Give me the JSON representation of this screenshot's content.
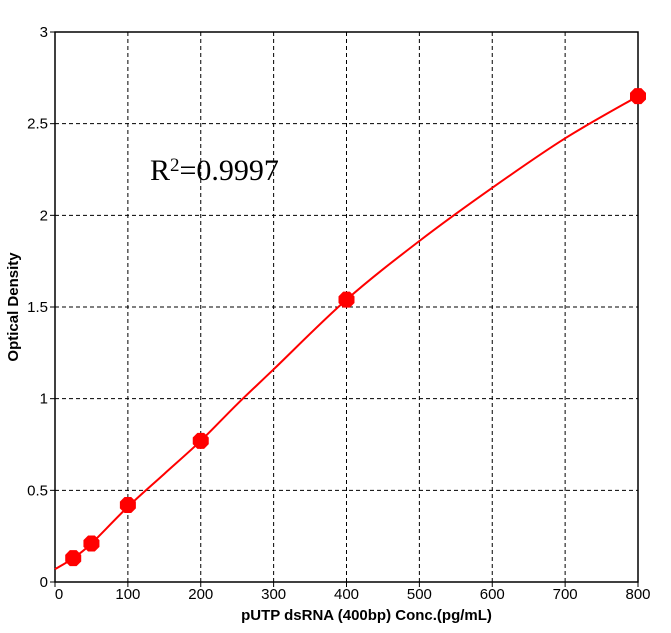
{
  "chart_data": {
    "type": "scatter",
    "title": "",
    "xlabel": "pUTP dsRNA (400bp) Conc.(pg/mL)",
    "ylabel": "Optical Density",
    "xlim": [
      0,
      800
    ],
    "ylim": [
      0,
      3
    ],
    "x_ticks": [
      0,
      100,
      200,
      300,
      400,
      500,
      600,
      700,
      800
    ],
    "y_ticks": [
      0,
      0.5,
      1,
      1.5,
      2,
      2.5,
      3
    ],
    "x_tick_labels": [
      "0",
      "100",
      "200",
      "300",
      "400",
      "500",
      "600",
      "700",
      "800"
    ],
    "y_tick_labels": [
      "0",
      "0.5",
      "1",
      "1.5",
      "2",
      "2.5",
      "3"
    ],
    "grid": true,
    "colors": {
      "series": "#ff0000",
      "grid": "#000000",
      "axis": "#000000"
    },
    "series": [
      {
        "x": [
          25,
          50,
          100,
          200,
          400,
          800
        ],
        "y": [
          0.13,
          0.21,
          0.42,
          0.77,
          1.54,
          2.65
        ]
      }
    ],
    "fit_curve": {
      "x": [
        0,
        25,
        50,
        100,
        150,
        200,
        250,
        300,
        400,
        500,
        600,
        700,
        800
      ],
      "y": [
        0.07,
        0.13,
        0.21,
        0.41,
        0.59,
        0.77,
        0.97,
        1.16,
        1.54,
        1.86,
        2.15,
        2.42,
        2.65
      ]
    },
    "annotation": {
      "base": "R",
      "sup": "2",
      "rest": "=0.9997"
    }
  }
}
